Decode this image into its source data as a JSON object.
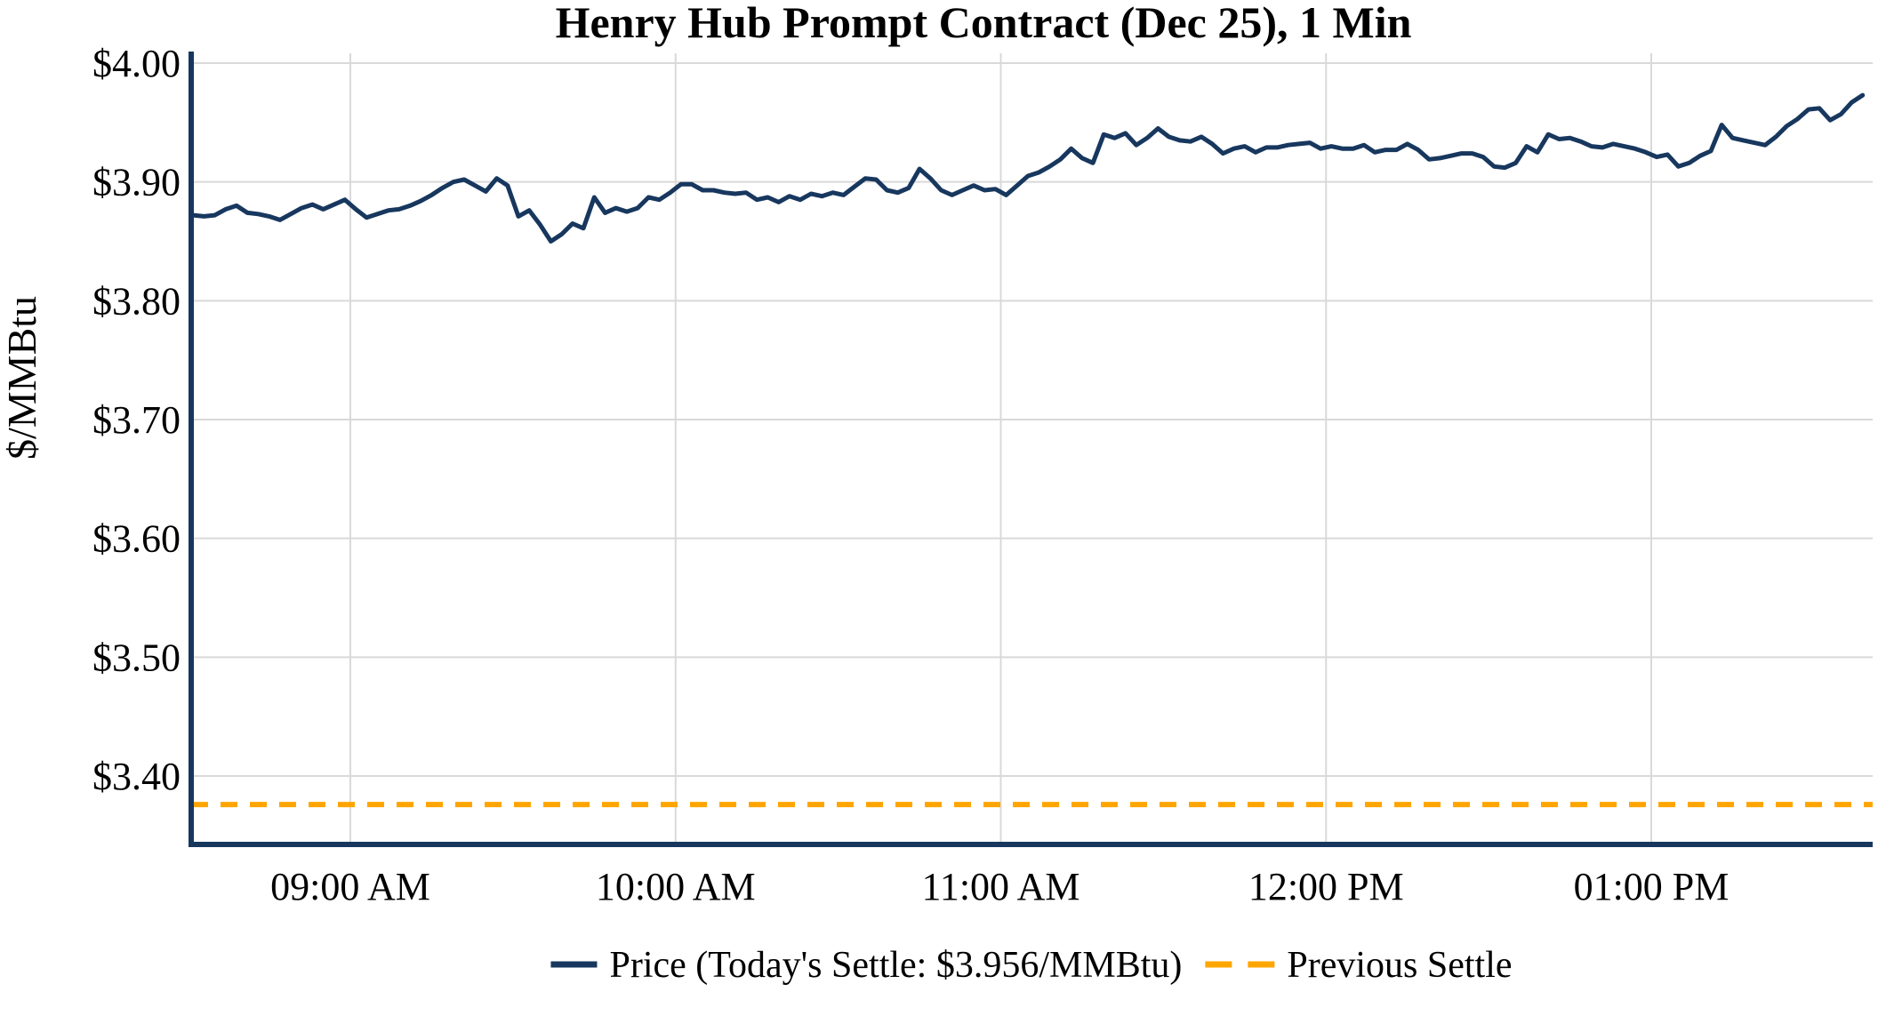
{
  "title": "Henry Hub Prompt Contract (Dec 25), 1 Min",
  "y_axis": {
    "label": "$/MMBtu",
    "ticks": [
      "$4.00",
      "$3.90",
      "$3.80",
      "$3.70",
      "$3.60",
      "$3.50",
      "$3.40"
    ],
    "tick_values": [
      4.0,
      3.9,
      3.8,
      3.7,
      3.6,
      3.5,
      3.4
    ]
  },
  "x_axis": {
    "ticks": [
      "09:00 AM",
      "10:00 AM",
      "11:00 AM",
      "12:00 PM",
      "01:00 PM"
    ],
    "tick_times": [
      "09:00",
      "10:00",
      "11:00",
      "12:00",
      "13:00"
    ]
  },
  "legend": {
    "price_label": "Price (Today's Settle: $3.956/MMBtu)",
    "previous_settle_label": "Previous Settle"
  },
  "colors": {
    "price_line": "#17375e",
    "previous_settle": "#ffa500",
    "grid": "#d9d9d9",
    "axis": "#17375e",
    "text": "#000000"
  },
  "chart_data": {
    "type": "line",
    "title": "Henry Hub Prompt Contract (Dec 25), 1 Min",
    "xlabel": "",
    "ylabel": "$/MMBtu",
    "ylim": [
      3.342,
      4.0
    ],
    "x_range": [
      "08:31",
      "13:39"
    ],
    "grid": true,
    "legend_position": "bottom-center",
    "today_settle": 3.956,
    "x_time": [
      "08:31",
      "08:33",
      "08:35",
      "08:37",
      "08:39",
      "08:41",
      "08:43",
      "08:45",
      "08:47",
      "08:49",
      "08:51",
      "08:53",
      "08:55",
      "08:57",
      "08:59",
      "09:01",
      "09:03",
      "09:05",
      "09:07",
      "09:09",
      "09:11",
      "09:13",
      "09:15",
      "09:17",
      "09:19",
      "09:21",
      "09:23",
      "09:25",
      "09:27",
      "09:29",
      "09:31",
      "09:33",
      "09:35",
      "09:37",
      "09:39",
      "09:41",
      "09:43",
      "09:45",
      "09:47",
      "09:49",
      "09:51",
      "09:53",
      "09:55",
      "09:57",
      "09:59",
      "10:01",
      "10:03",
      "10:05",
      "10:07",
      "10:09",
      "10:11",
      "10:13",
      "10:15",
      "10:17",
      "10:19",
      "10:21",
      "10:23",
      "10:25",
      "10:27",
      "10:29",
      "10:31",
      "10:33",
      "10:35",
      "10:37",
      "10:39",
      "10:41",
      "10:43",
      "10:45",
      "10:47",
      "10:49",
      "10:51",
      "10:53",
      "10:55",
      "10:57",
      "10:59",
      "11:01",
      "11:03",
      "11:05",
      "11:07",
      "11:09",
      "11:11",
      "11:13",
      "11:15",
      "11:17",
      "11:19",
      "11:21",
      "11:23",
      "11:25",
      "11:27",
      "11:29",
      "11:31",
      "11:33",
      "11:35",
      "11:37",
      "11:39",
      "11:41",
      "11:43",
      "11:45",
      "11:47",
      "11:49",
      "11:51",
      "11:53",
      "11:55",
      "11:57",
      "11:59",
      "12:01",
      "12:03",
      "12:05",
      "12:07",
      "12:09",
      "12:11",
      "12:13",
      "12:15",
      "12:17",
      "12:19",
      "12:21",
      "12:23",
      "12:25",
      "12:27",
      "12:29",
      "12:31",
      "12:33",
      "12:35",
      "12:37",
      "12:39",
      "12:41",
      "12:43",
      "12:45",
      "12:47",
      "12:49",
      "12:51",
      "12:53",
      "12:55",
      "12:57",
      "12:59",
      "13:01",
      "13:03",
      "13:05",
      "13:07",
      "13:09",
      "13:11",
      "13:13",
      "13:15",
      "13:17",
      "13:19",
      "13:21",
      "13:23",
      "13:25",
      "13:27",
      "13:29",
      "13:31",
      "13:33",
      "13:35",
      "13:37",
      "13:39"
    ],
    "series": [
      {
        "name": "Price (Today's Settle: $3.956/MMBtu)",
        "style": "solid",
        "color": "#17375e",
        "values": [
          3.872,
          3.871,
          3.872,
          3.877,
          3.88,
          3.874,
          3.873,
          3.871,
          3.868,
          3.873,
          3.878,
          3.881,
          3.877,
          3.881,
          3.885,
          3.877,
          3.87,
          3.873,
          3.876,
          3.877,
          3.88,
          3.884,
          3.889,
          3.895,
          3.9,
          3.902,
          3.897,
          3.892,
          3.903,
          3.897,
          3.871,
          3.876,
          3.864,
          3.85,
          3.856,
          3.865,
          3.861,
          3.887,
          3.874,
          3.878,
          3.875,
          3.878,
          3.887,
          3.885,
          3.891,
          3.898,
          3.898,
          3.893,
          3.893,
          3.891,
          3.89,
          3.891,
          3.885,
          3.887,
          3.883,
          3.888,
          3.885,
          3.89,
          3.888,
          3.891,
          3.889,
          3.896,
          3.903,
          3.902,
          3.893,
          3.891,
          3.895,
          3.911,
          3.903,
          3.893,
          3.889,
          3.893,
          3.897,
          3.893,
          3.894,
          3.889,
          3.897,
          3.905,
          3.908,
          3.913,
          3.919,
          3.928,
          3.92,
          3.916,
          3.94,
          3.937,
          3.941,
          3.931,
          3.937,
          3.945,
          3.938,
          3.935,
          3.934,
          3.938,
          3.932,
          3.924,
          3.928,
          3.93,
          3.925,
          3.929,
          3.929,
          3.931,
          3.932,
          3.933,
          3.928,
          3.93,
          3.928,
          3.928,
          3.931,
          3.925,
          3.927,
          3.927,
          3.932,
          3.927,
          3.919,
          3.92,
          3.922,
          3.924,
          3.924,
          3.921,
          3.913,
          3.912,
          3.916,
          3.93,
          3.925,
          3.94,
          3.936,
          3.937,
          3.934,
          3.93,
          3.929,
          3.932,
          3.93,
          3.928,
          3.925,
          3.921,
          3.923,
          3.913,
          3.916,
          3.922,
          3.926,
          3.948,
          3.937,
          3.935,
          3.933,
          3.931,
          3.938,
          3.947,
          3.953,
          3.961,
          3.962,
          3.952,
          3.957,
          3.967,
          3.973
        ]
      },
      {
        "name": "Previous Settle",
        "style": "dashed",
        "color": "#ffa500",
        "value": 3.376
      }
    ]
  }
}
